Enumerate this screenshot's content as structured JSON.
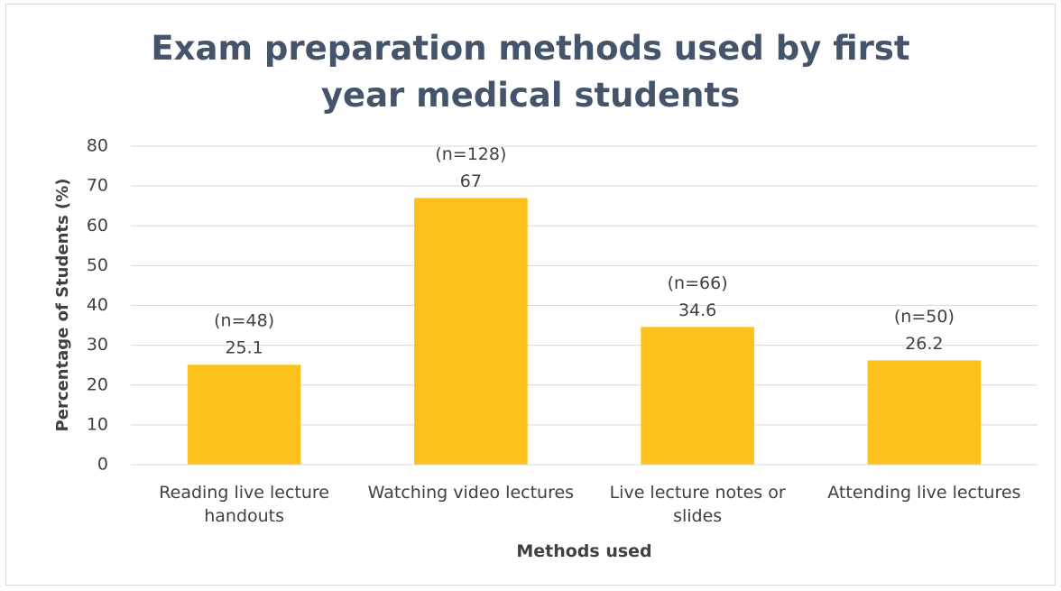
{
  "chart_data": {
    "type": "bar",
    "title": "Exam preparation methods used by first year medical students",
    "categories": [
      "Reading live lecture handouts",
      "Watching video lectures",
      "Live lecture notes or slides",
      "Attending live lectures"
    ],
    "values": [
      25.1,
      67,
      34.6,
      26.2
    ],
    "annotations": [
      "(n=48)",
      "(n=128)",
      "(n=66)",
      "(n=50)"
    ],
    "color": "#fcc21b",
    "x_label": "Methods used",
    "y_label": "Percentage of Students (%)",
    "ylim": [
      0,
      80
    ],
    "yticks": [
      0,
      10,
      20,
      30,
      40,
      50,
      60,
      70,
      80
    ],
    "grid": true
  }
}
